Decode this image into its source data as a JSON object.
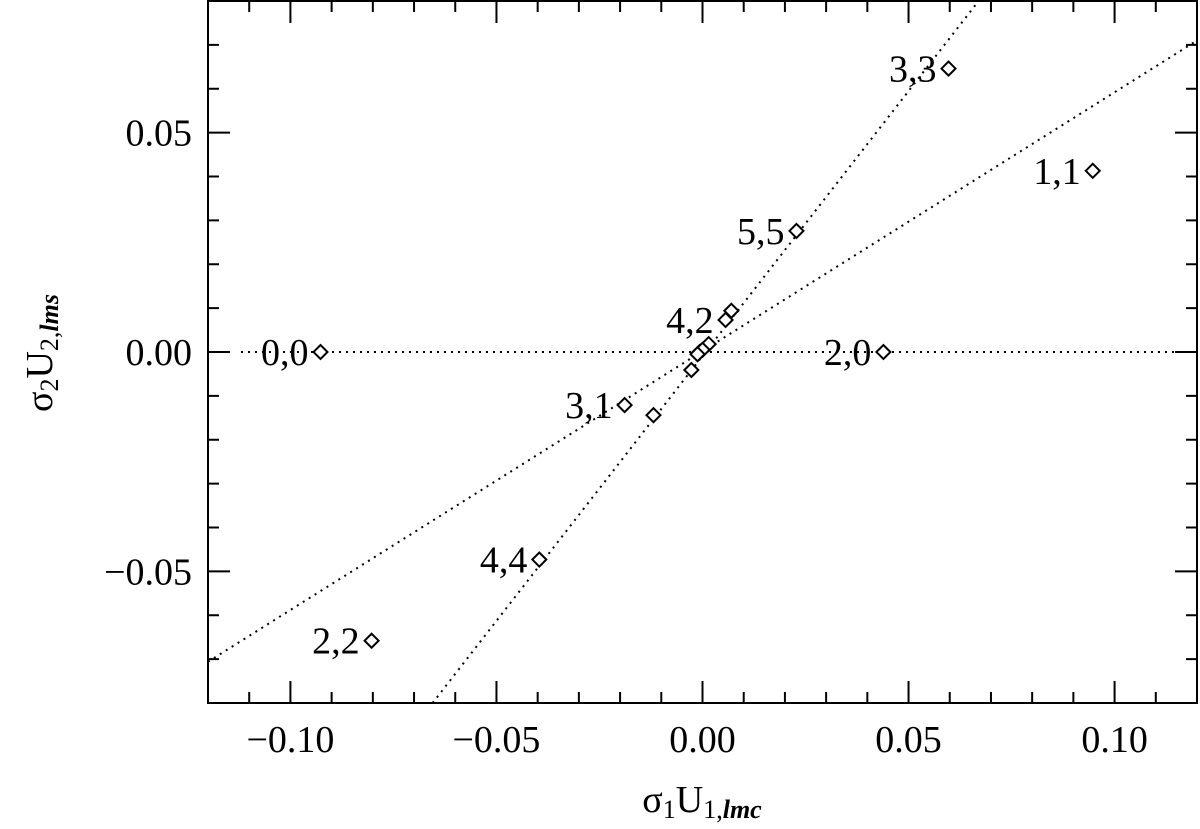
{
  "chart_data": {
    "type": "scatter",
    "xlabel": [
      "σ",
      "1",
      "U",
      "1,",
      "lmc"
    ],
    "ylabel": [
      "σ",
      "2",
      "U",
      "2,",
      "lms"
    ],
    "xlim": [
      -0.12,
      0.12
    ],
    "ylim": [
      -0.08,
      0.08
    ],
    "xticks": [
      {
        "value": -0.1,
        "label": "−0.10"
      },
      {
        "value": -0.05,
        "label": "−0.05"
      },
      {
        "value": 0,
        "label": "0.00"
      },
      0.05,
      {
        "value": 0.1,
        "label": "0.10"
      }
    ],
    "yticks": [
      {
        "value": -0.05,
        "label": "−0.05"
      },
      {
        "value": 0,
        "label": "0.00"
      },
      0.05
    ],
    "xminorticks": [
      -0.11,
      -0.09,
      -0.08,
      -0.07,
      -0.06,
      -0.04,
      -0.03,
      -0.02,
      -0.01,
      0.01,
      0.02,
      0.03,
      0.04,
      0.06,
      0.07,
      0.08,
      0.09,
      0.11
    ],
    "yminorticks": [
      -0.07,
      -0.06,
      -0.04,
      -0.03,
      -0.02,
      -0.01,
      0.01,
      0.02,
      0.03,
      0.04,
      0.06,
      0.07
    ],
    "series": [
      {
        "color": "#000000",
        "x": [
          -0.0927,
          0.0439,
          0.0947,
          0.0597,
          0.0228,
          -0.0803,
          -0.0396,
          -0.0189,
          -0.0119,
          -0.0027,
          0.0056,
          0.007,
          0.0015,
          -0.0007,
          0,
          -0.0012
        ],
        "values": [
          0,
          0,
          0.0413,
          0.0646,
          0.0276,
          -0.0658,
          -0.0473,
          -0.0121,
          -0.0144,
          -0.0041,
          0.0073,
          0.0094,
          0.0018,
          0,
          0.0005,
          -0.0005
        ],
        "labels": [
          "0,0",
          "2,0",
          "1,1",
          "3,3",
          "5,5",
          "2,2",
          "4,4",
          "3,1",
          null,
          null,
          "4,2",
          null,
          null,
          null,
          null,
          null
        ]
      }
    ],
    "lines": [
      {
        "x": [
          -0.112,
          0.12
        ],
        "y": [
          0,
          0
        ]
      },
      {
        "x": [
          -0.12,
          0.12
        ],
        "y": [
          -0.0706,
          0.071
        ]
      },
      {
        "x": [
          -0.0655,
          0.067
        ],
        "y": [
          -0.08,
          0.08
        ]
      }
    ]
  }
}
